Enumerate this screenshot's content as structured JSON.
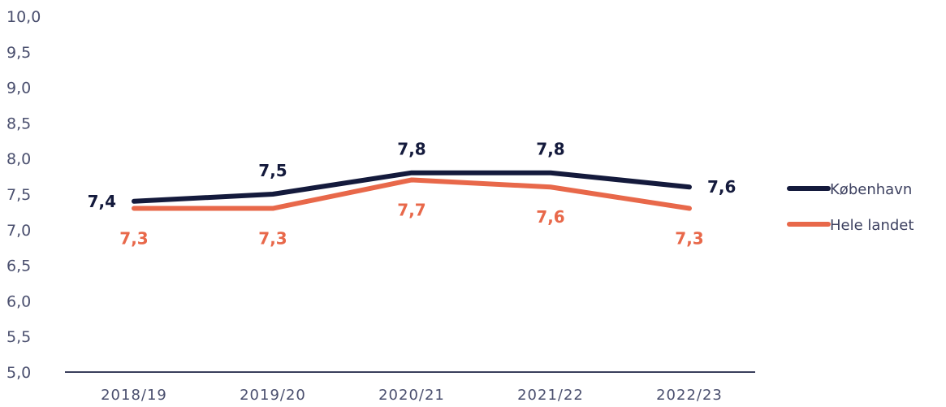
{
  "chart_data": {
    "type": "line",
    "title": "",
    "xlabel": "",
    "ylabel": "",
    "categories": [
      "2018/19",
      "2019/20",
      "2020/21",
      "2021/22",
      "2022/23"
    ],
    "ylim": [
      5.0,
      10.0
    ],
    "yticks": [
      "5,0",
      "5,5",
      "6,0",
      "6,5",
      "7,0",
      "7,5",
      "8,0",
      "8,5",
      "9,0",
      "9,5",
      "10,0"
    ],
    "grid": false,
    "legend": "right",
    "series": [
      {
        "name": "København",
        "color": "#141a3c",
        "values": [
          7.4,
          7.5,
          7.8,
          7.8,
          7.6
        ],
        "labels": [
          "7,4",
          "7,5",
          "7,8",
          "7,8",
          "7,6"
        ]
      },
      {
        "name": "Hele landet",
        "color": "#e8684a",
        "values": [
          7.3,
          7.3,
          7.7,
          7.6,
          7.3
        ],
        "labels": [
          "7,3",
          "7,3",
          "7,7",
          "7,6",
          "7,3"
        ]
      }
    ]
  }
}
